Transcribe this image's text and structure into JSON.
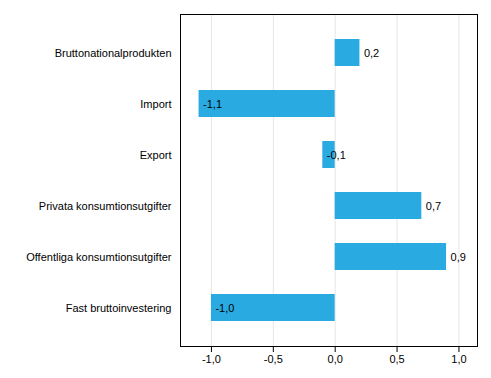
{
  "chart_data": {
    "type": "bar",
    "orientation": "horizontal",
    "categories": [
      "Fast bruttoinvestering",
      "Offentliga konsumtionsutgifter",
      "Privata konsumtionsutgifter",
      "Export",
      "Import",
      "Bruttonationalprodukten"
    ],
    "values": [
      -1.0,
      0.9,
      0.7,
      -0.1,
      -1.1,
      0.2
    ],
    "value_labels": [
      "-1,0",
      "0,9",
      "0,7",
      "-0,1",
      "-1,1",
      "0,2"
    ],
    "data_labels": true,
    "color": "#29ABE2",
    "xlim": [
      -1.25,
      1.15
    ],
    "xticks": [
      {
        "value": -1.0,
        "label": "-1,0"
      },
      {
        "value": -0.5,
        "label": "-0,5"
      },
      {
        "value": 0.0,
        "label": "0,0"
      },
      {
        "value": 0.5,
        "label": "0,5"
      },
      {
        "value": 1.0,
        "label": "1,0"
      }
    ],
    "grid": true
  }
}
